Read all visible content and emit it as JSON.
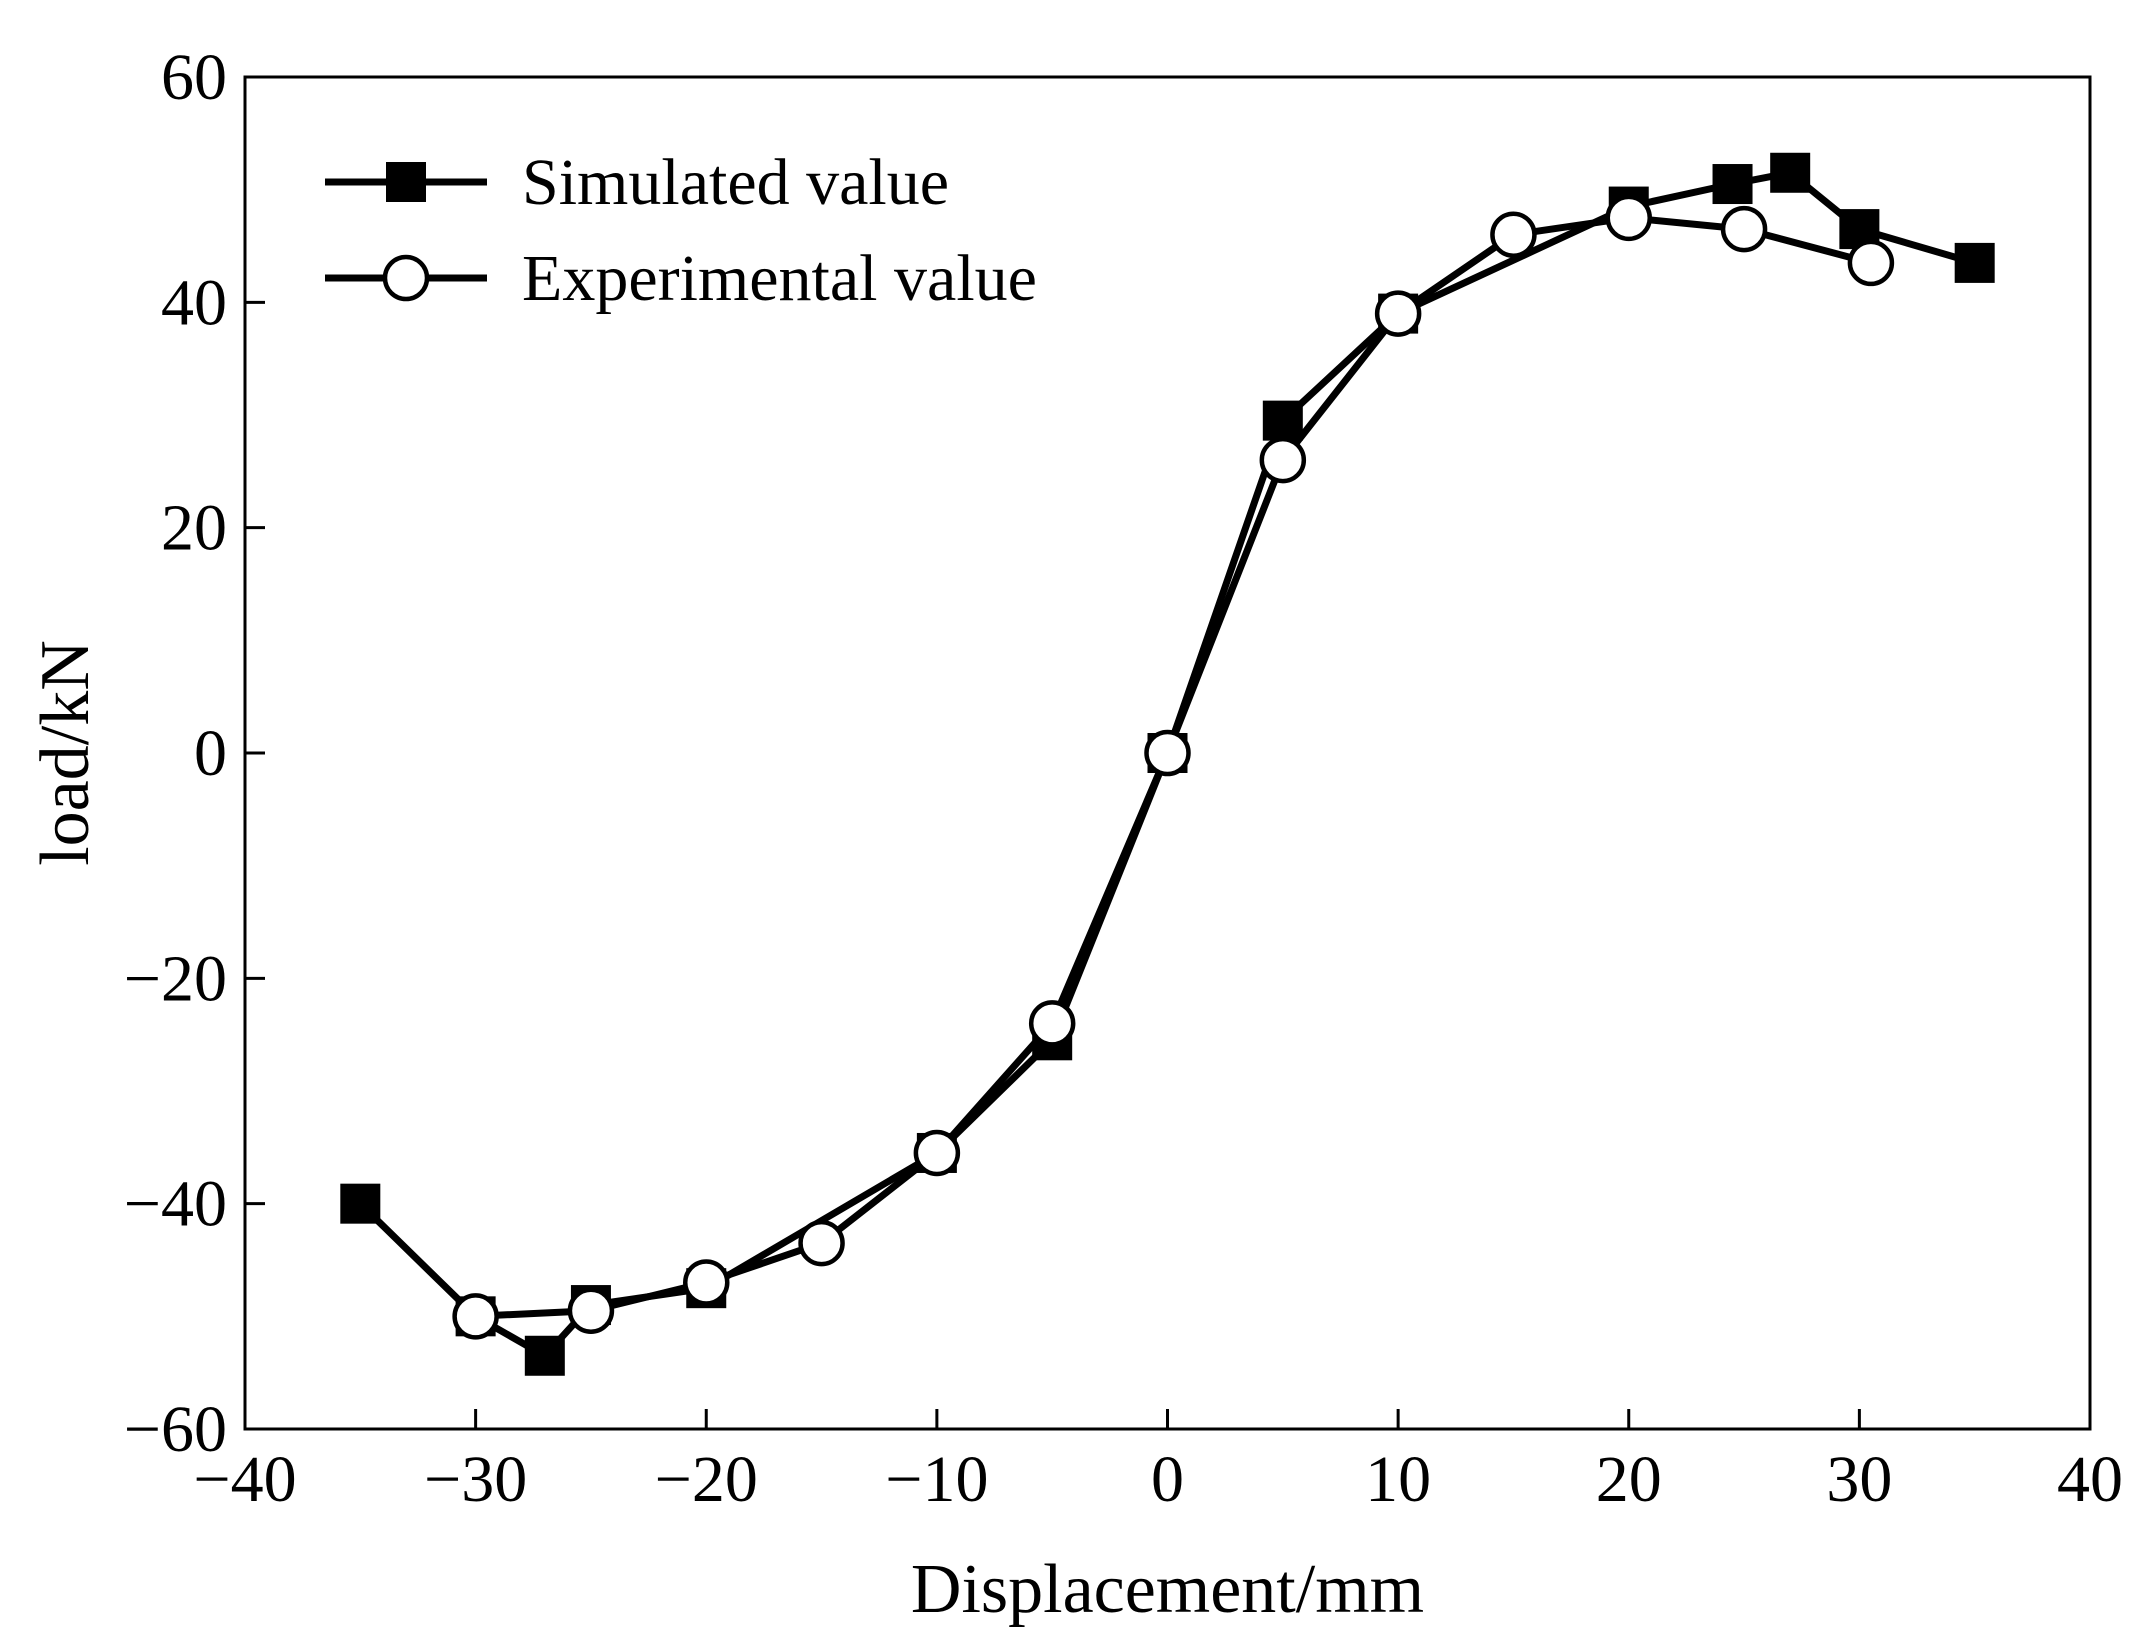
{
  "chart_data": {
    "type": "line",
    "title": "",
    "xlabel": "Displacement/mm",
    "ylabel": "load/kN",
    "xlim": [
      -40,
      40
    ],
    "ylim": [
      -60,
      60
    ],
    "xticks": [
      -40,
      -30,
      -20,
      -10,
      0,
      10,
      20,
      30,
      40
    ],
    "yticks": [
      -60,
      -40,
      -20,
      0,
      20,
      40,
      60
    ],
    "xtick_labels": [
      "−40",
      "−30",
      "−20",
      "−10",
      "0",
      "10",
      "20",
      "30",
      "40"
    ],
    "ytick_labels": [
      "−60",
      "−40",
      "−20",
      "0",
      "20",
      "40",
      "60"
    ],
    "grid": false,
    "legend_position": "top-left",
    "series": [
      {
        "name": "Simulated value",
        "marker": "filled-square",
        "color": "#000000",
        "points": [
          [
            -35,
            -40
          ],
          [
            -30,
            -50
          ],
          [
            -27,
            -53.5
          ],
          [
            -25,
            -49
          ],
          [
            -20,
            -47.5
          ],
          [
            -10,
            -35.5
          ],
          [
            -5,
            -25.5
          ],
          [
            0,
            0
          ],
          [
            5,
            29.5
          ],
          [
            10,
            39
          ],
          [
            20,
            48.5
          ],
          [
            24.5,
            50.5
          ],
          [
            27,
            51.5
          ],
          [
            30,
            46.5
          ],
          [
            35,
            43.5
          ]
        ]
      },
      {
        "name": "Experimental value",
        "marker": "open-circle",
        "color": "#000000",
        "points": [
          [
            -30,
            -50
          ],
          [
            -25,
            -49.5
          ],
          [
            -20,
            -47
          ],
          [
            -15,
            -43.5
          ],
          [
            -10,
            -35.5
          ],
          [
            -5,
            -24
          ],
          [
            0,
            0
          ],
          [
            5,
            26
          ],
          [
            10,
            39
          ],
          [
            15,
            46
          ],
          [
            20,
            47.5
          ],
          [
            25,
            46.5
          ],
          [
            30.5,
            43.5
          ]
        ]
      }
    ]
  }
}
